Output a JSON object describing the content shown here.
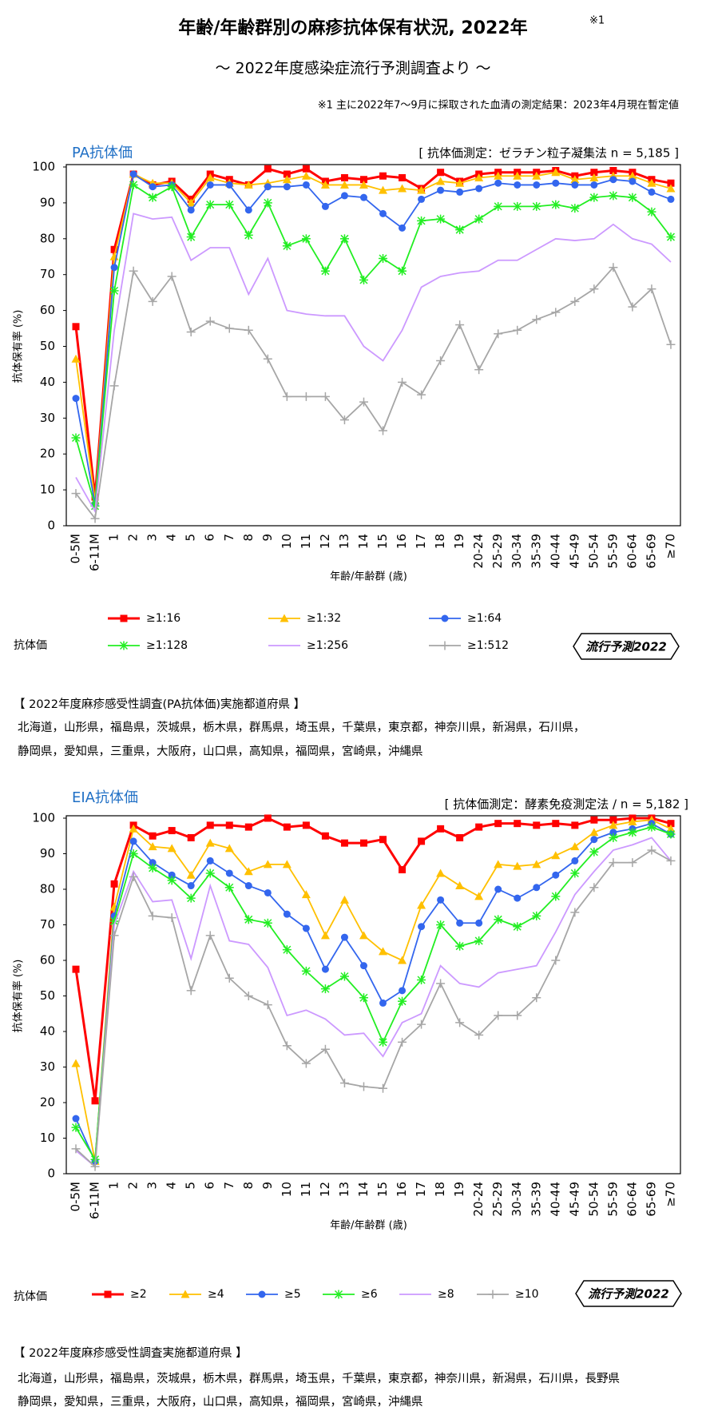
{
  "title": "年齢/年齢群別の麻疹抗体保有状況, 2022年",
  "title_note": "※1",
  "subtitle": "～ 2022年度感染症流行予測調査より ～",
  "note": "※1  主に2022年7～9月に採取された血清の測定結果：2023年4月現在暫定値",
  "badge": "流行予測2022",
  "prefectures": [
    {
      "heading": "【 2022年度麻疹感受性調査(PA抗体価)実施都道府県 】",
      "lines": [
        "北海道，山形県，福島県，茨城県，栃木県，群馬県，埼玉県，千葉県，東京都，神奈川県，新潟県，石川県，",
        "静岡県，愛知県，三重県，大阪府，山口県，高知県，福岡県，宮崎県，沖縄県"
      ]
    },
    {
      "heading": "【 2022年度麻疹感受性調査実施都道府県 】",
      "lines": [
        "北海道，山形県，福島県，茨城県，栃木県，群馬県，埼玉県，千葉県，東京都，神奈川県，新潟県，石川県，長野県",
        "静岡県，愛知県，三重県，大阪府，山口県，高知県，福岡県，宮崎県，沖縄県"
      ]
    }
  ],
  "chart_data": [
    {
      "type": "line",
      "title": "PA抗体価",
      "measurement": "[ 抗体価測定：ゼラチン粒子凝集法  n = 5,185 ]",
      "y_label": "抗体保有率 (%)",
      "x_label": "年齢/年齢群 (歳)",
      "legend_title": "抗体価",
      "grid": false,
      "categories": [
        "0-5M",
        "6-11M",
        "1",
        "2",
        "3",
        "4",
        "5",
        "6",
        "7",
        "8",
        "9",
        "10",
        "11",
        "12",
        "13",
        "14",
        "15",
        "16",
        "17",
        "18",
        "19",
        "20-24",
        "25-29",
        "30-34",
        "35-39",
        "40-44",
        "45-49",
        "50-54",
        "55-59",
        "60-64",
        "65-69",
        "≥70"
      ],
      "ylim": [
        0,
        100
      ],
      "yticks": [
        0,
        10,
        20,
        30,
        40,
        50,
        60,
        70,
        80,
        90,
        100
      ],
      "series": [
        {
          "name": "≥1:16",
          "color": "#ff0000",
          "marker": "square",
          "values": [
            55.5,
            8,
            77,
            98,
            95,
            96,
            91,
            98,
            96.5,
            95,
            99.5,
            98,
            99.5,
            96,
            97,
            96.5,
            97.5,
            97,
            94,
            98.5,
            96,
            98,
            98.5,
            98.5,
            98.5,
            99,
            97.5,
            98.5,
            99,
            98.5,
            96.5,
            95.5
          ]
        },
        {
          "name": "≥1:32",
          "color": "#ffc000",
          "marker": "triangle",
          "values": [
            46.5,
            7,
            75,
            98,
            95.5,
            95.5,
            90,
            97,
            95.5,
            95,
            95.5,
            96.5,
            97.5,
            95,
            95,
            95,
            93.5,
            94,
            93.5,
            96,
            95.5,
            97,
            97.5,
            97.5,
            97.5,
            98.5,
            96.5,
            97,
            97.5,
            97.5,
            95.5,
            94
          ]
        },
        {
          "name": "≥1:64",
          "color": "#3366ee",
          "marker": "circle",
          "values": [
            35.5,
            6,
            72,
            98,
            94.5,
            95,
            88,
            95,
            95,
            88,
            94.5,
            94.5,
            95,
            89,
            92,
            91.5,
            87,
            83,
            91,
            93.5,
            93,
            94,
            95.5,
            95,
            95,
            95.5,
            95,
            95,
            96.5,
            96,
            93,
            91
          ]
        },
        {
          "name": "≥1:128",
          "color": "#22ee22",
          "marker": "asterisk",
          "values": [
            24.5,
            5.5,
            65.5,
            95,
            91.5,
            94.5,
            80.5,
            89.5,
            89.5,
            81,
            90,
            78,
            80,
            71,
            80,
            68.5,
            74.5,
            71,
            85,
            85.5,
            82.5,
            85.5,
            89,
            89,
            89,
            89.5,
            88.5,
            91.5,
            92,
            91.5,
            87.5,
            80.5
          ]
        },
        {
          "name": "≥1:256",
          "color": "#cc99ff",
          "marker": "none",
          "values": [
            13.5,
            4,
            54.5,
            87,
            85.5,
            86,
            74,
            77.5,
            77.5,
            64.5,
            74.5,
            60,
            59,
            58.5,
            58.5,
            50,
            46,
            54.5,
            66.5,
            69.5,
            70.5,
            71,
            74,
            74,
            77,
            80,
            79.5,
            80,
            84,
            80,
            78.5,
            73.5
          ]
        },
        {
          "name": "≥1:512",
          "color": "#a6a6a6",
          "marker": "plus",
          "values": [
            9,
            2,
            39,
            71,
            62.5,
            69.5,
            54,
            57,
            55,
            54.5,
            46.5,
            36,
            36,
            36,
            29.5,
            34.5,
            26.5,
            40,
            36.5,
            46,
            56,
            43.5,
            53.5,
            54.5,
            57.5,
            59.5,
            62.5,
            66,
            72,
            61,
            66,
            50.5
          ]
        }
      ]
    },
    {
      "type": "line",
      "title": "EIA抗体価",
      "measurement": "[ 抗体価測定：酵素免疫測定法  / n = 5,182 ]",
      "y_label": "抗体保有率 (%)",
      "x_label": "年齢/年齢群 (歳)",
      "legend_title": "抗体価",
      "grid": false,
      "categories": [
        "0-5M",
        "6-11M",
        "1",
        "2",
        "3",
        "4",
        "5",
        "6",
        "7",
        "8",
        "9",
        "10",
        "11",
        "12",
        "13",
        "14",
        "15",
        "16",
        "17",
        "18",
        "19",
        "20-24",
        "25-29",
        "30-34",
        "35-39",
        "40-44",
        "45-49",
        "50-54",
        "55-59",
        "60-64",
        "65-69",
        "≥70"
      ],
      "ylim": [
        0,
        100
      ],
      "yticks": [
        0,
        10,
        20,
        30,
        40,
        50,
        60,
        70,
        80,
        90,
        100
      ],
      "series": [
        {
          "name": "≥2",
          "color": "#ff0000",
          "marker": "square",
          "values": [
            57.5,
            20.5,
            81.5,
            98,
            95,
            96.5,
            94.5,
            98,
            98,
            97.5,
            100,
            97.5,
            98,
            95,
            93,
            93,
            94,
            85.5,
            93.5,
            97,
            94.5,
            97.5,
            98.5,
            98.5,
            98,
            98.5,
            98,
            99.5,
            99.5,
            100,
            100,
            98.5
          ]
        },
        {
          "name": "≥4",
          "color": "#ffc000",
          "marker": "triangle",
          "values": [
            31,
            3.5,
            75,
            97,
            92,
            91.5,
            84,
            93,
            91.5,
            85,
            87,
            87,
            78.5,
            67,
            77,
            67,
            62.5,
            60,
            75.5,
            84.5,
            81,
            78,
            87,
            86.5,
            87,
            89.5,
            92,
            96,
            98,
            99,
            99.5,
            97
          ]
        },
        {
          "name": "≥5",
          "color": "#3366ee",
          "marker": "circle",
          "values": [
            15.5,
            3.5,
            72.5,
            93.5,
            87.5,
            84,
            81,
            88,
            84.5,
            81,
            79,
            73,
            69,
            57.5,
            66.5,
            58.5,
            48,
            51.5,
            69.5,
            77,
            70.5,
            70.5,
            80,
            77.5,
            80.5,
            84,
            88,
            94,
            96,
            97,
            98.5,
            95.5
          ]
        },
        {
          "name": "≥6",
          "color": "#22ee22",
          "marker": "asterisk",
          "values": [
            13,
            4,
            71,
            90,
            86,
            82.5,
            77.5,
            84.5,
            80.5,
            71.5,
            70.5,
            63,
            57,
            52,
            55.5,
            49.5,
            37,
            48.5,
            54.5,
            70,
            64,
            65.5,
            71.5,
            69.5,
            72.5,
            78,
            84.5,
            90.5,
            94.5,
            96,
            97.5,
            95.5
          ]
        },
        {
          "name": "≥8",
          "color": "#cc99ff",
          "marker": "none",
          "values": [
            6.5,
            2,
            70,
            85,
            76.5,
            77,
            60.5,
            81,
            65.5,
            64.5,
            58,
            44.5,
            46,
            43.5,
            39,
            39.5,
            33,
            42.5,
            45,
            58.5,
            53.5,
            52.5,
            56.5,
            57.5,
            58.5,
            68,
            78.5,
            85,
            91,
            92.5,
            94.5,
            88
          ]
        },
        {
          "name": "≥10",
          "color": "#a6a6a6",
          "marker": "plus",
          "values": [
            7,
            2,
            67,
            83.5,
            72.5,
            72,
            51.5,
            67,
            55,
            50,
            47.5,
            36,
            31,
            35,
            25.5,
            24.5,
            24,
            37,
            42,
            53.5,
            42.5,
            39,
            44.5,
            44.5,
            49.5,
            60,
            73.5,
            80.5,
            87.5,
            87.5,
            91,
            88
          ]
        }
      ]
    }
  ]
}
